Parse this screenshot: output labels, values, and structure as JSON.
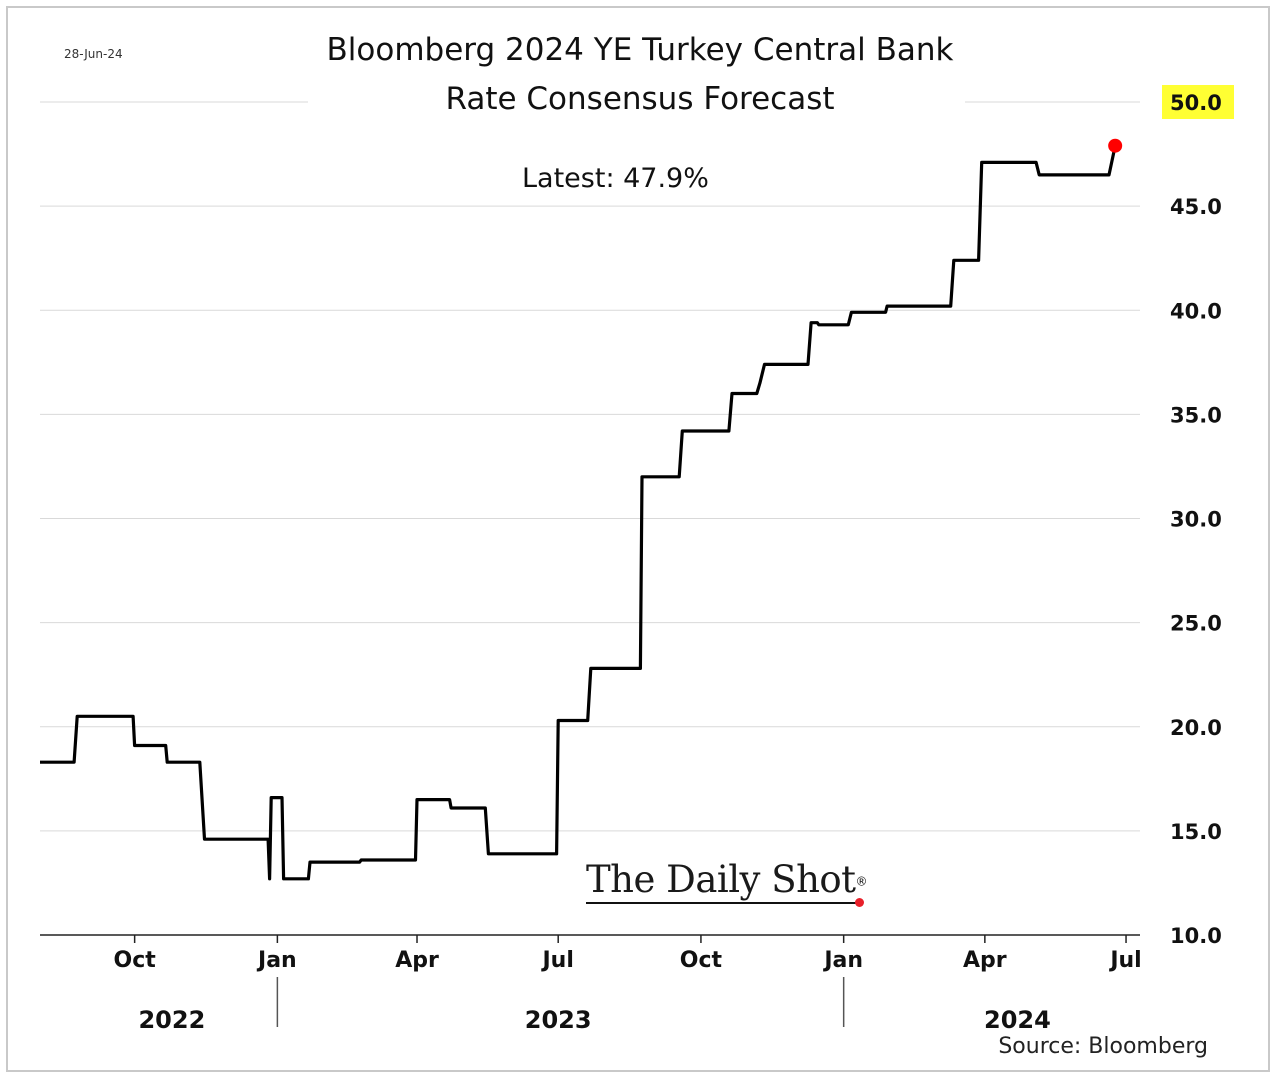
{
  "header": {
    "date_note": "28-Jun-24",
    "title_line1": "Bloomberg 2024 YE Turkey Central Bank",
    "title_line2": "Rate Consensus Forecast",
    "latest_label": "Latest:  47.9%"
  },
  "footer": {
    "source": "Source: Bloomberg",
    "logo_text": "The Daily Shot",
    "logo_mark": "®"
  },
  "colors": {
    "line": "#000000",
    "latest_marker": "#ff0000",
    "highlight": "#ffff33",
    "grid": "#d9d9d9"
  },
  "chart_data": {
    "type": "line",
    "title": "Bloomberg 2024 YE Turkey Central Bank Rate Consensus Forecast",
    "xlabel": "",
    "ylabel": "",
    "xlim": [
      "2022-08-01",
      "2024-07-10"
    ],
    "ylim": [
      10,
      50
    ],
    "y_ticks": [
      10,
      15,
      20,
      25,
      30,
      35,
      40,
      45,
      50
    ],
    "y_tick_labels": [
      "10.0",
      "15.0",
      "20.0",
      "25.0",
      "30.0",
      "35.0",
      "40.0",
      "45.0",
      "50.0"
    ],
    "highlighted_tick": "50.0",
    "y_axis_side": "right",
    "grid": "horizontal",
    "x_ticks": [
      {
        "date": "2022-10-01",
        "label": "Oct"
      },
      {
        "date": "2023-01-01",
        "label": "Jan"
      },
      {
        "date": "2023-04-01",
        "label": "Apr"
      },
      {
        "date": "2023-07-01",
        "label": "Jul"
      },
      {
        "date": "2023-10-01",
        "label": "Oct"
      },
      {
        "date": "2024-01-01",
        "label": "Jan"
      },
      {
        "date": "2024-04-01",
        "label": "Apr"
      },
      {
        "date": "2024-07-01",
        "label": "Jul"
      }
    ],
    "year_labels": [
      {
        "label": "2022",
        "date": "2022-10-25"
      },
      {
        "label": "2023",
        "date": "2023-07-01"
      },
      {
        "label": "2024",
        "date": "2024-04-22"
      }
    ],
    "year_separators": [
      "2023-01-01",
      "2024-01-01"
    ],
    "series": [
      {
        "points": [
          [
            "2022-08-01",
            18.3
          ],
          [
            "2022-08-23",
            18.3
          ],
          [
            "2022-08-25",
            20.5
          ],
          [
            "2022-09-30",
            20.5
          ],
          [
            "2022-10-01",
            19.1
          ],
          [
            "2022-10-21",
            19.1
          ],
          [
            "2022-10-22",
            18.3
          ],
          [
            "2022-11-12",
            18.3
          ],
          [
            "2022-11-15",
            14.6
          ],
          [
            "2022-12-26",
            14.6
          ],
          [
            "2022-12-27",
            12.7
          ],
          [
            "2022-12-28",
            16.6
          ],
          [
            "2023-01-04",
            16.6
          ],
          [
            "2023-01-05",
            12.7
          ],
          [
            "2023-01-21",
            12.7
          ],
          [
            "2023-01-22",
            13.5
          ],
          [
            "2023-02-23",
            13.5
          ],
          [
            "2023-02-24",
            13.6
          ],
          [
            "2023-03-31",
            13.6
          ],
          [
            "2023-04-01",
            16.5
          ],
          [
            "2023-04-22",
            16.5
          ],
          [
            "2023-04-23",
            16.1
          ],
          [
            "2023-05-15",
            16.1
          ],
          [
            "2023-05-17",
            13.9
          ],
          [
            "2023-06-30",
            13.9
          ],
          [
            "2023-07-01",
            20.3
          ],
          [
            "2023-07-20",
            20.3
          ],
          [
            "2023-07-22",
            22.8
          ],
          [
            "2023-08-23",
            22.8
          ],
          [
            "2023-08-24",
            32.0
          ],
          [
            "2023-09-17",
            32.0
          ],
          [
            "2023-09-19",
            34.2
          ],
          [
            "2023-10-19",
            34.2
          ],
          [
            "2023-10-21",
            36.0
          ],
          [
            "2023-11-06",
            36.0
          ],
          [
            "2023-11-08",
            36.5
          ],
          [
            "2023-11-11",
            37.4
          ],
          [
            "2023-12-09",
            37.4
          ],
          [
            "2023-12-11",
            39.4
          ],
          [
            "2023-12-15",
            39.4
          ],
          [
            "2023-12-16",
            39.3
          ],
          [
            "2024-01-04",
            39.3
          ],
          [
            "2024-01-06",
            39.9
          ],
          [
            "2024-01-28",
            39.9
          ],
          [
            "2024-01-29",
            40.2
          ],
          [
            "2024-03-10",
            40.2
          ],
          [
            "2024-03-12",
            42.4
          ],
          [
            "2024-03-28",
            42.4
          ],
          [
            "2024-03-30",
            47.1
          ],
          [
            "2024-05-04",
            47.1
          ],
          [
            "2024-05-06",
            46.5
          ],
          [
            "2024-06-20",
            46.5
          ],
          [
            "2024-06-24",
            47.9
          ]
        ]
      }
    ],
    "latest": {
      "date": "2024-06-24",
      "value": 47.9
    },
    "annotations": [
      "Latest:  47.9%"
    ]
  }
}
